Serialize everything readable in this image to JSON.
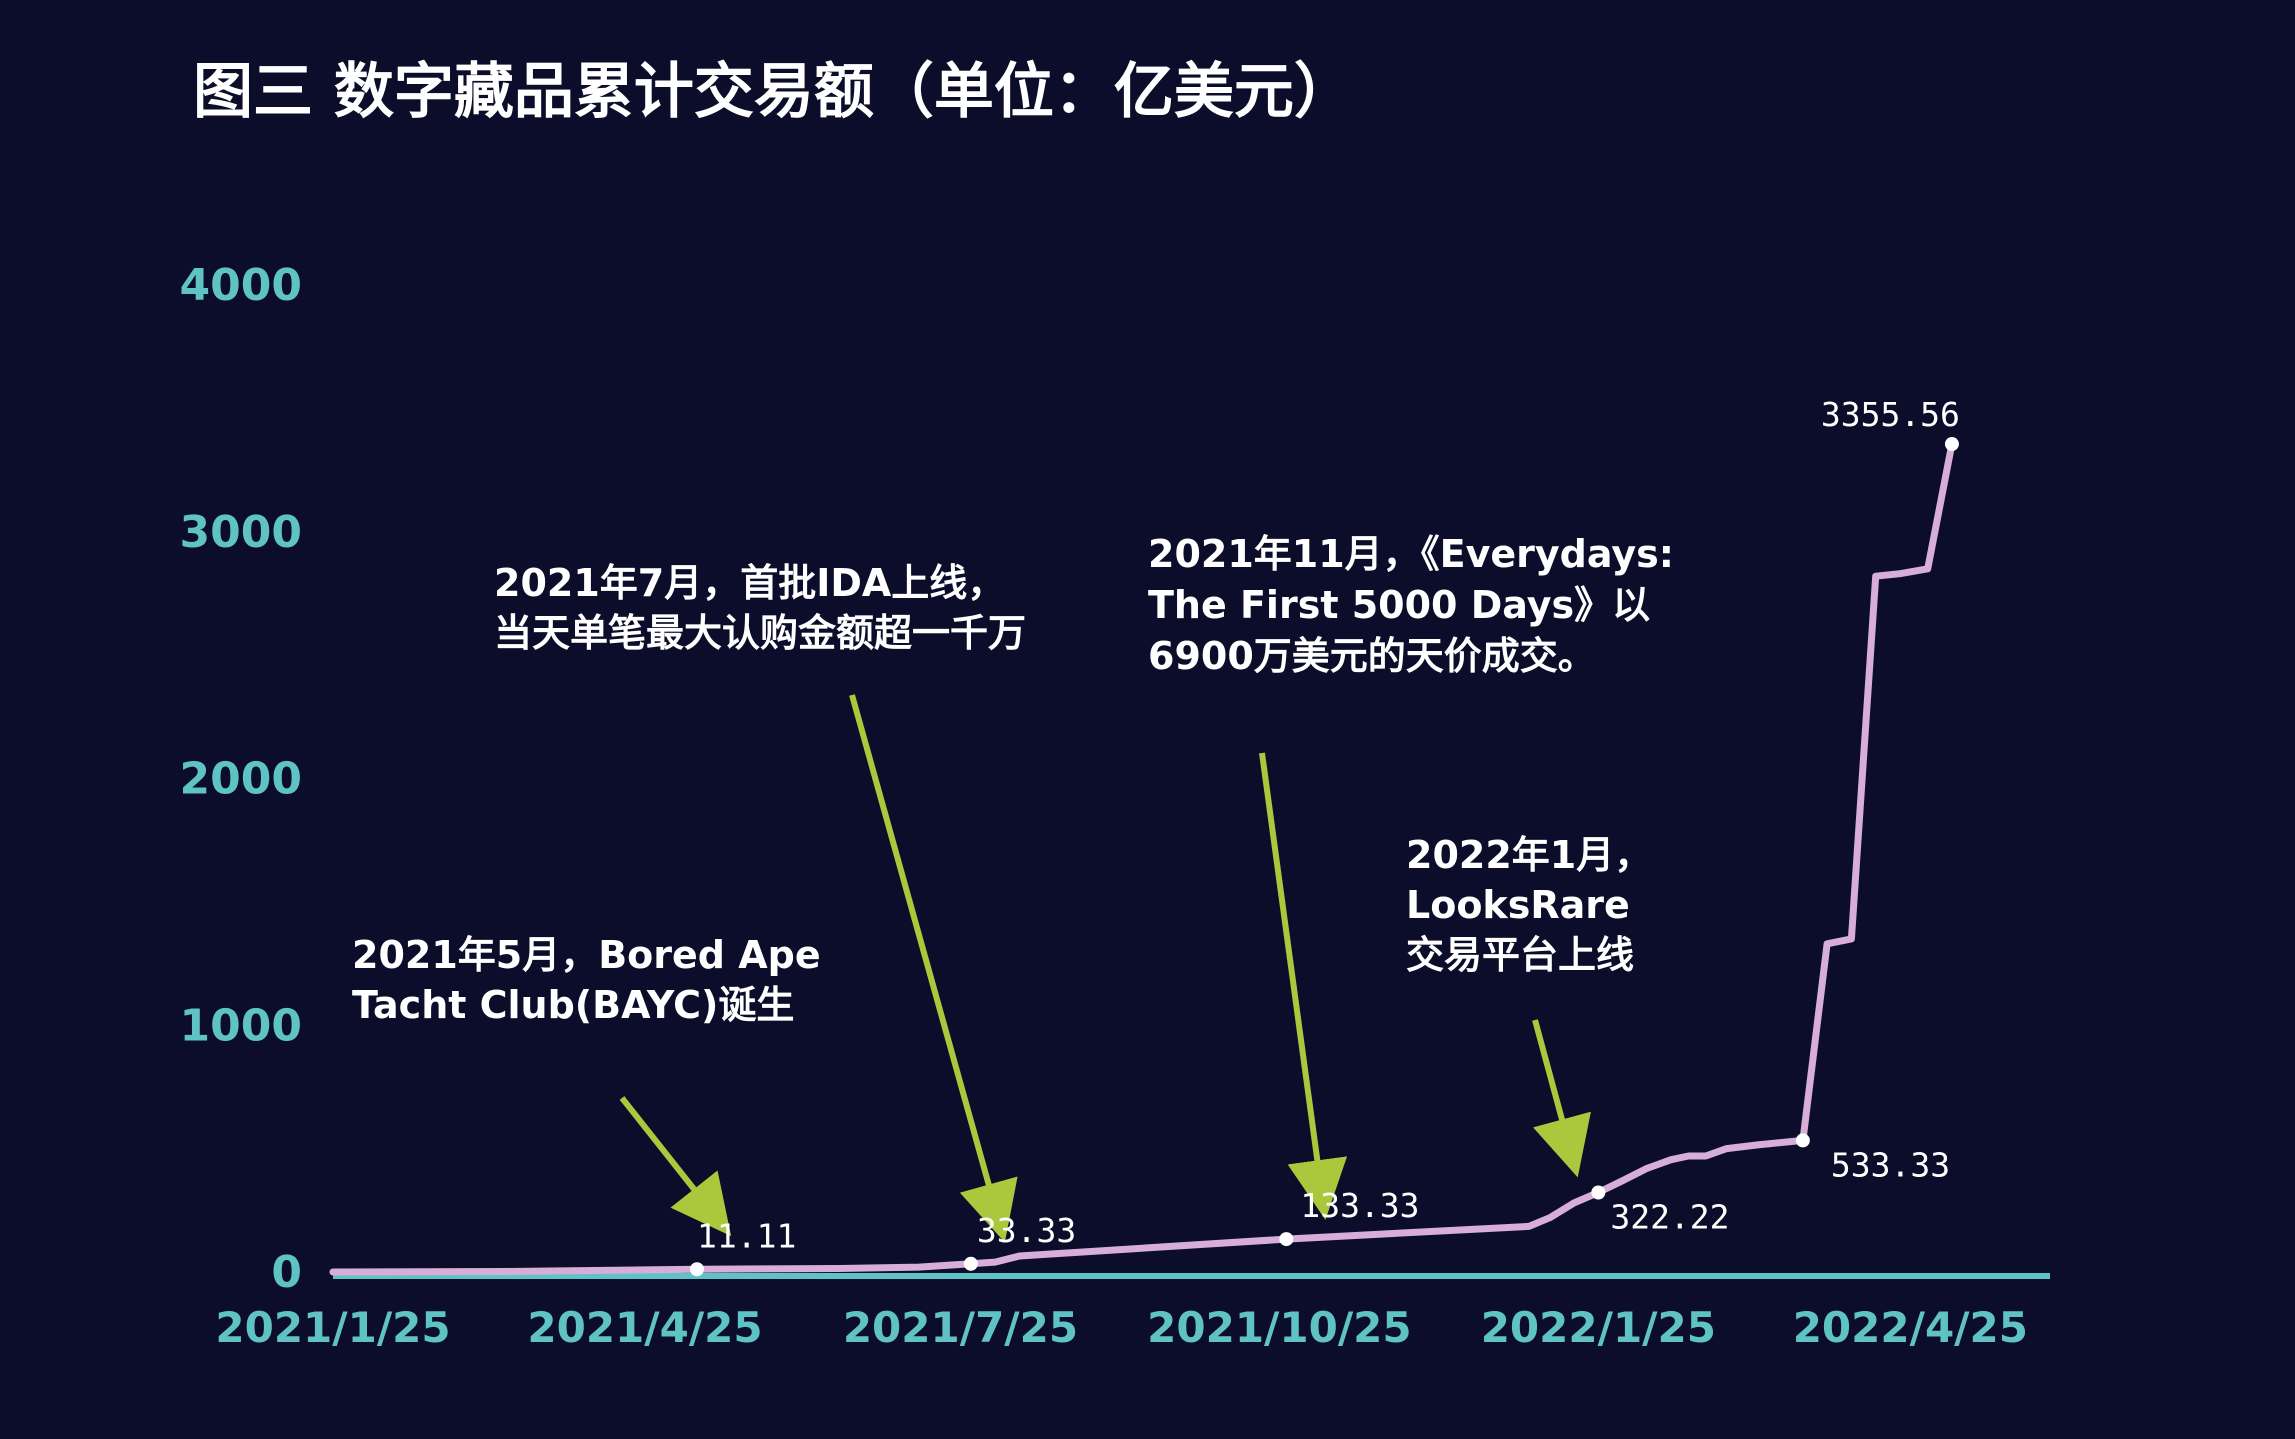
{
  "chart_data": {
    "type": "line",
    "title": "图三 数字藏品累计交易额（单位：亿美元）",
    "xlabel": "",
    "ylabel": "",
    "ylim": [
      0,
      4000
    ],
    "yticks": [
      0,
      1000,
      2000,
      3000,
      4000
    ],
    "xlim": [
      "2021-01-25",
      "2022-05-25"
    ],
    "xticks": [
      {
        "date": "2021-01-25",
        "label": "2021/1/25"
      },
      {
        "date": "2021-04-25",
        "label": "2021/4/25"
      },
      {
        "date": "2021-07-25",
        "label": "2021/7/25"
      },
      {
        "date": "2021-10-25",
        "label": "2021/10/25"
      },
      {
        "date": "2022-01-25",
        "label": "2022/1/25"
      },
      {
        "date": "2022-04-25",
        "label": "2022/4/25"
      }
    ],
    "grid": false,
    "legend": "none",
    "colors": {
      "background": "#0c0d2a",
      "line": "#d7aed7",
      "axis": "#5fc3c6",
      "arrow": "#a9c83c",
      "marker": "#ffffff"
    },
    "series": [
      {
        "points": [
          [
            "2021-01-25",
            0
          ],
          [
            "2021-03-15",
            2
          ],
          [
            "2021-05-10",
            11.11
          ],
          [
            "2021-06-20",
            14
          ],
          [
            "2021-07-13",
            20
          ],
          [
            "2021-07-28",
            33.33
          ],
          [
            "2021-08-04",
            40
          ],
          [
            "2021-08-11",
            65
          ],
          [
            "2021-10-27",
            133.33
          ],
          [
            "2022-01-05",
            185
          ],
          [
            "2022-01-11",
            220
          ],
          [
            "2022-01-18",
            280
          ],
          [
            "2022-01-25",
            322.22
          ],
          [
            "2022-02-01",
            370
          ],
          [
            "2022-02-08",
            420
          ],
          [
            "2022-02-15",
            455
          ],
          [
            "2022-02-20",
            470
          ],
          [
            "2022-02-25",
            470
          ],
          [
            "2022-03-03",
            500
          ],
          [
            "2022-03-12",
            515
          ],
          [
            "2022-03-25",
            533.33
          ],
          [
            "2022-04-01",
            1330
          ],
          [
            "2022-04-08",
            1350
          ],
          [
            "2022-04-15",
            2820
          ],
          [
            "2022-04-22",
            2830
          ],
          [
            "2022-04-30",
            2850
          ],
          [
            "2022-05-07",
            3355.56
          ]
        ]
      }
    ],
    "labeled_points": [
      {
        "date": "2021-05-10",
        "value": 11.11,
        "label": "11.11"
      },
      {
        "date": "2021-07-28",
        "value": 33.33,
        "label": "33.33"
      },
      {
        "date": "2021-10-27",
        "value": 133.33,
        "label": "133.33"
      },
      {
        "date": "2022-01-25",
        "value": 322.22,
        "label": "322.22"
      },
      {
        "date": "2022-03-25",
        "value": 533.33,
        "label": "533.33"
      },
      {
        "date": "2022-05-07",
        "value": 3355.56,
        "label": "3355.56"
      }
    ],
    "annotations": [
      {
        "lines": [
          "2021年5月，Bored Ape",
          "Tacht Club(BAYC)诞生"
        ],
        "target_date": "2021-05-10",
        "target_value": 11.11
      },
      {
        "lines": [
          "2021年7月，首批IDA上线，",
          "当天单笔最大认购金额超一千万"
        ],
        "target_date": "2021-07-28",
        "target_value": 33.33
      },
      {
        "lines": [
          "2021年11月，《Everydays:",
          "The First 5000 Days》以",
          "6900万美元的天价成交。"
        ],
        "target_date": "2021-10-27",
        "target_value": 133.33
      },
      {
        "lines": [
          "2022年1月，",
          "LooksRare",
          "交易平台上线"
        ],
        "target_date": "2022-01-25",
        "target_value": 322.22
      }
    ]
  }
}
